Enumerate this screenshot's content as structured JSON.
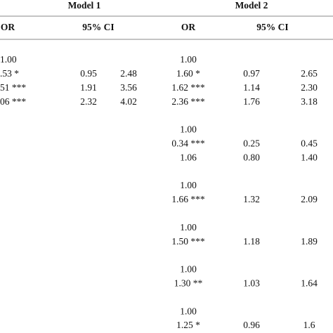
{
  "header": {
    "groups": [
      "Model 1",
      "Model 2"
    ],
    "columns": [
      "OR",
      "95% CI",
      "OR",
      "95% CI"
    ]
  },
  "table": {
    "rows": [
      [
        "1.00",
        null,
        null,
        "1.00",
        null,
        null
      ],
      [
        ".53 *",
        "0.95",
        "2.48",
        "1.60 *",
        "0.97",
        "2.65"
      ],
      [
        "51 ***",
        "1.91",
        "3.56",
        "1.62 ***",
        "1.14",
        "2.30"
      ],
      [
        "06 ***",
        "2.32",
        "4.02",
        "2.36 ***",
        "1.76",
        "3.18"
      ],
      null,
      [
        null,
        null,
        null,
        "1.00",
        null,
        null
      ],
      [
        null,
        null,
        null,
        "0.34 ***",
        "0.25",
        "0.45"
      ],
      [
        null,
        null,
        null,
        "1.06",
        "0.80",
        "1.40"
      ],
      null,
      [
        null,
        null,
        null,
        "1.00",
        null,
        null
      ],
      [
        null,
        null,
        null,
        "1.66 ***",
        "1.32",
        "2.09"
      ],
      null,
      [
        null,
        null,
        null,
        "1.00",
        null,
        null
      ],
      [
        null,
        null,
        null,
        "1.50 ***",
        "1.18",
        "1.89"
      ],
      null,
      [
        null,
        null,
        null,
        "1.00",
        null,
        null
      ],
      [
        null,
        null,
        null,
        "1.30 **",
        "1.03",
        "1.64"
      ],
      null,
      [
        null,
        null,
        null,
        "1.00",
        null,
        null
      ],
      [
        null,
        null,
        null,
        "1.25 *",
        "0.96",
        "1.6"
      ]
    ]
  }
}
